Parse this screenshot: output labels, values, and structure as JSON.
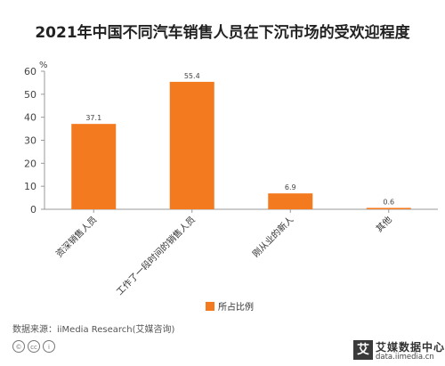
{
  "title": "2021年中国不同汽车销售人员在下沉市场的受欢迎程度",
  "source": "数据来源：iiMedia Research(艾媒咨询)",
  "brand": {
    "name": "艾媒数据中心",
    "url": "data.iimedia.cn",
    "mark": "艾"
  },
  "license_icons": [
    "©",
    "cc",
    "i"
  ],
  "colors": {
    "bar": "#f47a20",
    "axis": "#999999"
  },
  "chart_data": {
    "type": "bar",
    "title": "2021年中国不同汽车销售人员在下沉市场的受欢迎程度",
    "ylabel": "%",
    "ylim": [
      0,
      60
    ],
    "yticks": [
      0,
      10,
      20,
      30,
      40,
      50,
      60
    ],
    "categories": [
      "资深销售人员",
      "工作了一段时间的销售人员",
      "刚从业的新人",
      "其他"
    ],
    "series": [
      {
        "name": "所占比例",
        "values": [
          37.1,
          55.4,
          6.9,
          0.6
        ]
      }
    ],
    "grid": false,
    "legend": "bottom-center"
  }
}
